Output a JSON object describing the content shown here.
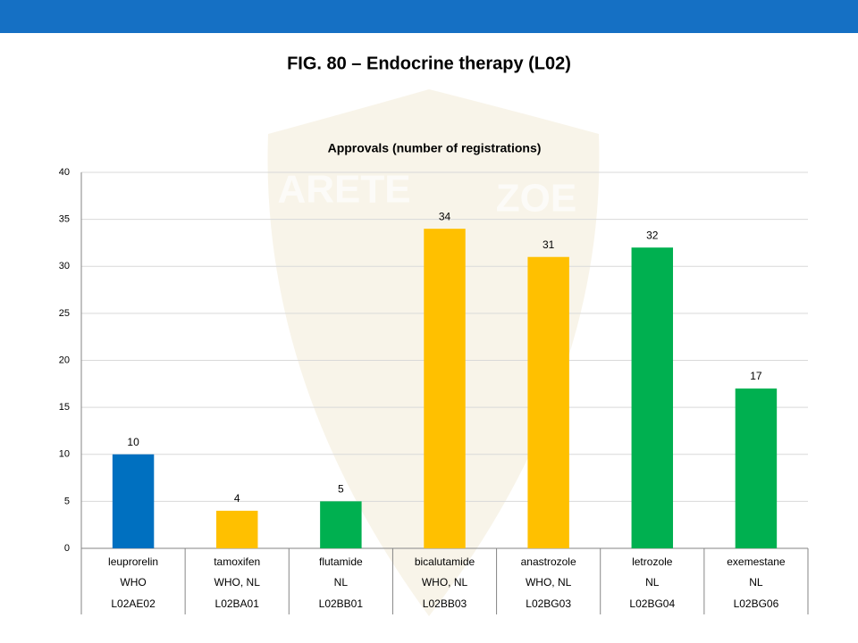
{
  "chart_data": {
    "type": "bar",
    "title": "FIG. 80 – Endocrine therapy (L02)",
    "subtitle": "Approvals (number of registrations)",
    "watermark": [
      "ARETE",
      "ZOE"
    ],
    "categories": [
      "leuprorelin",
      "tamoxifen",
      "flutamide",
      "bicalutamide",
      "anastrozole",
      "letrozole",
      "exemestane"
    ],
    "category_sources": [
      "WHO",
      "WHO, NL",
      "NL",
      "WHO, NL",
      "WHO, NL",
      "NL",
      "NL"
    ],
    "category_codes": [
      "L02AE02",
      "L02BA01",
      "L02BB01",
      "L02BB03",
      "L02BG03",
      "L02BG04",
      "L02BG06"
    ],
    "values": [
      10,
      4,
      5,
      34,
      31,
      32,
      17
    ],
    "colors": [
      "#0070c0",
      "#ffc000",
      "#00b050",
      "#ffc000",
      "#ffc000",
      "#00b050",
      "#00b050"
    ],
    "ylim": [
      0,
      40
    ],
    "yticks": [
      0,
      5,
      10,
      15,
      20,
      25,
      30,
      35,
      40
    ],
    "grid": true
  }
}
